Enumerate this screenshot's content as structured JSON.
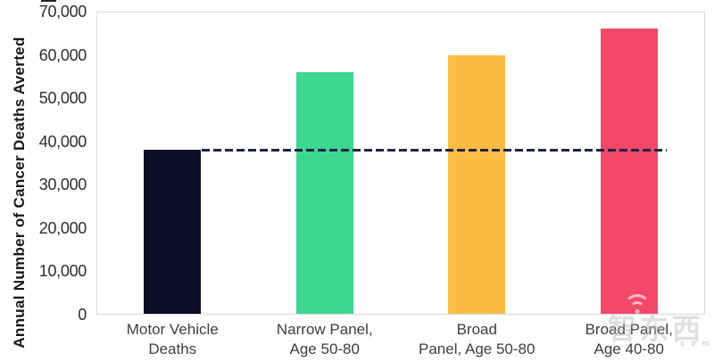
{
  "watermark": {
    "text": "智东西",
    "suffix": "c o m",
    "icon": "wifi-icon"
  },
  "colors": {
    "background": "#ffffff",
    "plot_border": "#d9d9d9",
    "axis_tick_text": "#2d2d2d",
    "category_text": "#3d3d3d",
    "y_title_text": "#181818",
    "reference_line": "#1f2444"
  },
  "chart_data": {
    "type": "bar",
    "title": "",
    "xlabel": "",
    "ylabel": "Annual Number of Cancer Deaths Averted",
    "ylim": [
      0,
      70000
    ],
    "grid": false,
    "legend": false,
    "categories": [
      "Motor Vehicle Deaths",
      "Narrow Panel, Age 50-80",
      "Broad Panel, Age 50-80",
      "Broad Panel, Age 40-80"
    ],
    "category_label_lines": [
      [
        "Motor Vehicle",
        "Deaths"
      ],
      [
        "Narrow Panel,",
        "Age 50-80"
      ],
      [
        "Broad",
        "Panel, Age 50-80"
      ],
      [
        "Broad Panel,",
        "Age 40-80"
      ]
    ],
    "values": [
      38000,
      56000,
      60000,
      66000
    ],
    "bar_colors": [
      "#0e0e26",
      "#3dd68f",
      "#fbbc43",
      "#f4486b"
    ],
    "ytick_values": [
      0,
      10000,
      20000,
      30000,
      40000,
      50000,
      60000,
      70000
    ],
    "ytick_labels": [
      "0",
      "10,000",
      "20,000",
      "30,000",
      "40,000",
      "50,000",
      "60,000",
      "70,000"
    ],
    "reference_line": {
      "value": 38000,
      "style": "dashed",
      "color": "#1f2444",
      "label": ""
    }
  }
}
